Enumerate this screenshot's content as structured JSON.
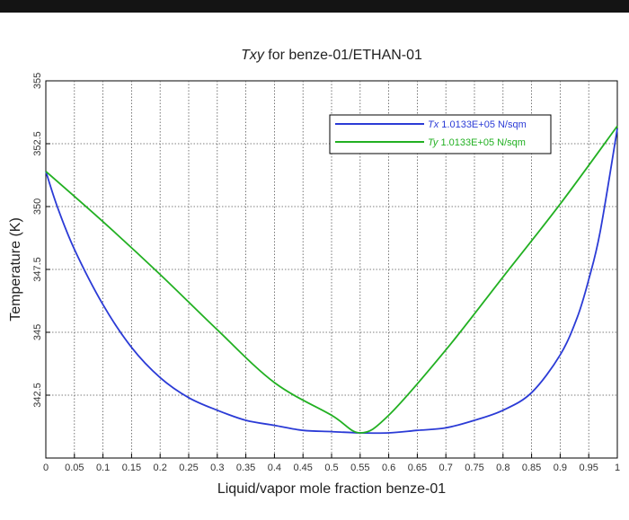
{
  "chart_data": {
    "type": "line",
    "title_italic": "Txy",
    "title_rest": " for benze-01/ETHAN-01",
    "xlabel": "Liquid/vapor mole fraction benze-01",
    "ylabel": "Temperature (K)",
    "xlim": [
      0,
      1
    ],
    "ylim": [
      340,
      355
    ],
    "xticks": [
      0,
      0.05,
      0.1,
      0.15,
      0.2,
      0.25,
      0.3,
      0.35,
      0.4,
      0.45,
      0.5,
      0.55,
      0.6,
      0.65,
      0.7,
      0.75,
      0.8,
      0.85,
      0.9,
      0.95,
      1
    ],
    "xtick_labels": [
      "0",
      "0.05",
      "0.1",
      "0.15",
      "0.2",
      "0.25",
      "0.3",
      "0.35",
      "0.4",
      "0.45",
      "0.5",
      "0.55",
      "0.6",
      "0.65",
      "0.7",
      "0.75",
      "0.8",
      "0.85",
      "0.9",
      "0.95",
      "1"
    ],
    "yticks": [
      342.5,
      345,
      347.5,
      350,
      352.5,
      355
    ],
    "ytick_labels": [
      "342.5",
      "345",
      "347.5",
      "350",
      "352.5",
      "355"
    ],
    "grid": true,
    "legend_position": "top-right",
    "series": [
      {
        "name_italic": "Tx",
        "name_rest": " 1.0133E+05 N/sqm",
        "color": "#2b3bd6",
        "x": [
          0,
          0.02,
          0.05,
          0.1,
          0.15,
          0.2,
          0.25,
          0.3,
          0.35,
          0.4,
          0.45,
          0.5,
          0.55,
          0.6,
          0.65,
          0.7,
          0.75,
          0.8,
          0.85,
          0.9,
          0.93,
          0.95,
          0.97,
          1
        ],
        "y": [
          351.4,
          350.0,
          348.3,
          346.1,
          344.4,
          343.2,
          342.4,
          341.9,
          341.5,
          341.3,
          341.1,
          341.05,
          341.0,
          341.0,
          341.1,
          341.2,
          341.5,
          341.9,
          342.6,
          344.1,
          345.6,
          347.1,
          349.0,
          353.1
        ]
      },
      {
        "name_italic": "Ty",
        "name_rest": " 1.0133E+05 N/sqm",
        "color": "#22b022",
        "x": [
          0,
          0.1,
          0.2,
          0.3,
          0.4,
          0.5,
          0.55,
          0.6,
          0.7,
          0.8,
          0.9,
          1
        ],
        "y": [
          351.4,
          349.4,
          347.3,
          345.1,
          343.0,
          341.7,
          341.0,
          341.7,
          344.3,
          347.2,
          350.1,
          353.2
        ]
      }
    ]
  }
}
